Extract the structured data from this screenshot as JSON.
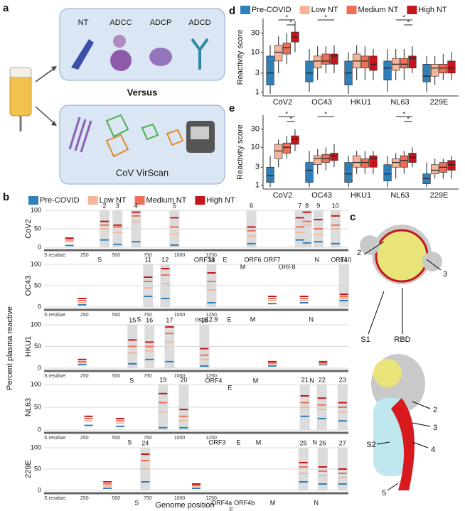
{
  "panel_labels": [
    "a",
    "b",
    "c",
    "d",
    "e"
  ],
  "panel_a": {
    "assays": [
      "NT",
      "ADCC",
      "ADCP",
      "ADCD"
    ],
    "versus": "Versus",
    "method": "CoV VirScan"
  },
  "panel_c": {
    "labels": [
      "2",
      "3",
      "S1",
      "RBD",
      "S2",
      "2",
      "3",
      "4",
      "5"
    ]
  },
  "chart_data": [
    {
      "type": "genome",
      "ylabel": "Percent plasma reactive",
      "xlabel": "Genome position",
      "xlim": [
        100,
        2500
      ],
      "ylim": [
        0,
        100
      ],
      "yticks": [
        0,
        50,
        100
      ],
      "grid": true,
      "legend": "top",
      "residue_label": "S residue:",
      "residue_ticks": [
        250,
        500,
        750,
        1000,
        1250
      ],
      "series": [
        {
          "name": "Pre-COVID",
          "color": "#2f7fb8"
        },
        {
          "name": "Low NT",
          "color": "#f6b59a"
        },
        {
          "name": "Medium NT",
          "color": "#ee6f55"
        },
        {
          "name": "High NT",
          "color": "#c4161c"
        }
      ],
      "tracks": [
        {
          "name": "CoV2",
          "peaks": [
            {
              "label": "2",
              "x": 577
            },
            {
              "label": "3",
              "x": 679
            },
            {
              "label": "4",
              "x": 825
            },
            {
              "label": "5",
              "x": 1128
            },
            {
              "label": "6",
              "x": 1735
            },
            {
              "label": "7",
              "x": 2117
            },
            {
              "label": "8",
              "x": 2173
            },
            {
              "label": "9",
              "x": 2263
            },
            {
              "label": "10",
              "x": 2398
            }
          ],
          "genes": [
            {
              "label": "S",
              "x": 538
            },
            {
              "label": "ORF3a",
              "x": 1364
            },
            {
              "label": "E",
              "x": 1527
            },
            {
              "label": "M",
              "x": 1667
            },
            {
              "label": "ORF6",
              "x": 1746
            },
            {
              "label": "ORF7",
              "x": 1898
            },
            {
              "label": "ORF8",
              "x": 2016
            },
            {
              "label": "N",
              "x": 2252
            },
            {
              "label": "ORF10",
              "x": 2443
            }
          ],
          "x": [
            300,
            577,
            679,
            825,
            1128,
            1735,
            2117,
            2173,
            2263,
            2398
          ],
          "values": [
            [
              5,
              20,
              8,
              15,
              6,
              10,
              20,
              12,
              15,
              10
            ],
            [
              15,
              50,
              40,
              70,
              35,
              30,
              40,
              60,
              35,
              50
            ],
            [
              20,
              60,
              55,
              85,
              55,
              45,
              55,
              70,
              50,
              60
            ],
            [
              25,
              70,
              60,
              95,
              80,
              55,
              80,
              95,
              75,
              85
            ]
          ]
        },
        {
          "name": "OC43",
          "peaks": [
            {
              "label": "11",
              "x": 920
            },
            {
              "label": "12",
              "x": 1055
            },
            {
              "label": "13",
              "x": 1420
            },
            {
              "label": "14",
              "x": 2465
            }
          ],
          "genes": [
            {
              "label": "S",
              "x": 847
            },
            {
              "label": "nsp12.9",
              "x": 1380
            },
            {
              "label": "E",
              "x": 1560
            },
            {
              "label": "M",
              "x": 1746
            },
            {
              "label": "N",
              "x": 2207
            }
          ],
          "x": [
            400,
            920,
            1055,
            1420,
            1900,
            2150,
            2465
          ],
          "values": [
            [
              5,
              25,
              20,
              10,
              8,
              10,
              15
            ],
            [
              10,
              45,
              55,
              40,
              15,
              15,
              20
            ],
            [
              15,
              60,
              75,
              60,
              20,
              20,
              25
            ],
            [
              20,
              70,
              90,
              80,
              25,
              25,
              30
            ]
          ]
        },
        {
          "name": "HKU1",
          "peaks": [
            {
              "label": "15",
              "x": 797
            },
            {
              "label": "16",
              "x": 931
            },
            {
              "label": "17",
              "x": 1089
            },
            {
              "label": "18",
              "x": 1364
            }
          ],
          "genes": [
            {
              "label": "S",
              "x": 791
            },
            {
              "label": "ORF4",
              "x": 1437
            },
            {
              "label": "E",
              "x": 1566
            },
            {
              "label": "M",
              "x": 1768
            },
            {
              "label": "N",
              "x": 2212
            }
          ],
          "x": [
            400,
            797,
            931,
            1089,
            1364,
            1900,
            2300
          ],
          "values": [
            [
              8,
              10,
              20,
              15,
              5,
              5,
              8
            ],
            [
              12,
              35,
              40,
              60,
              20,
              10,
              10
            ],
            [
              15,
              50,
              50,
              80,
              30,
              12,
              12
            ],
            [
              20,
              65,
              60,
              95,
              45,
              15,
              15
            ]
          ]
        },
        {
          "name": "NL63",
          "peaks": [
            {
              "label": "19",
              "x": 1038
            },
            {
              "label": "20",
              "x": 1201
            },
            {
              "label": "21",
              "x": 2156
            },
            {
              "label": "22",
              "x": 2291
            },
            {
              "label": "23",
              "x": 2454
            }
          ],
          "genes": [
            {
              "label": "S",
              "x": 774
            },
            {
              "label": "ORF3",
              "x": 1465
            },
            {
              "label": "E",
              "x": 1634
            },
            {
              "label": "M",
              "x": 1791
            },
            {
              "label": "N",
              "x": 2235
            }
          ],
          "x": [
            450,
            700,
            1038,
            1201,
            2156,
            2291,
            2454
          ],
          "values": [
            [
              10,
              8,
              5,
              5,
              30,
              25,
              20
            ],
            [
              20,
              15,
              40,
              20,
              50,
              45,
              40
            ],
            [
              25,
              20,
              60,
              30,
              60,
              55,
              50
            ],
            [
              30,
              25,
              80,
              45,
              75,
              70,
              60
            ]
          ]
        },
        {
          "name": "229E",
          "peaks": [
            {
              "label": "24",
              "x": 898
            },
            {
              "label": "25",
              "x": 2145
            },
            {
              "label": "26",
              "x": 2297
            },
            {
              "label": "27",
              "x": 2454
            }
          ],
          "genes": [
            {
              "label": "S",
              "x": 830
            },
            {
              "label": "ORF4a",
              "x": 1500
            },
            {
              "label": "ORF4b",
              "x": 1679
            },
            {
              "label": "E",
              "x": 1578
            },
            {
              "label": "M",
              "x": 1903
            },
            {
              "label": "N",
              "x": 2246
            }
          ],
          "x": [
            600,
            898,
            1300,
            2145,
            2297,
            2454
          ],
          "values": [
            [
              5,
              20,
              5,
              20,
              15,
              15
            ],
            [
              10,
              50,
              10,
              40,
              35,
              30
            ],
            [
              15,
              70,
              12,
              55,
              45,
              40
            ],
            [
              20,
              85,
              15,
              65,
              55,
              50
            ]
          ]
        }
      ]
    },
    {
      "type": "box",
      "log": true,
      "ylabel": "Reactivity score",
      "legend": "top",
      "categories": [
        "CoV2",
        "OC43",
        "HKU1",
        "NL63",
        "229E"
      ],
      "ylim": [
        0.8,
        70
      ],
      "yticks": [
        1,
        3,
        10,
        30
      ],
      "series": [
        {
          "name": "Pre-COVID",
          "color": "#2f7fb8",
          "values": [
            [
              0.9,
              1.5,
              3,
              8,
              15
            ],
            [
              1,
              1.8,
              3,
              6,
              12
            ],
            [
              0.9,
              1.5,
              3,
              6,
              10
            ],
            [
              1,
              2,
              4,
              6,
              12
            ],
            [
              1,
              1.8,
              2.5,
              5,
              8
            ]
          ]
        },
        {
          "name": "Low NT",
          "color": "#f6b59a",
          "values": [
            [
              3,
              6,
              10,
              15,
              25
            ],
            [
              2,
              4,
              6,
              8,
              14
            ],
            [
              2,
              4,
              6,
              9,
              15
            ],
            [
              2,
              3.5,
              5,
              7,
              12
            ],
            [
              1.5,
              2.5,
              4,
              5,
              8
            ]
          ]
        },
        {
          "name": "Medium NT",
          "color": "#ee6f55",
          "values": [
            [
              5,
              9,
              13,
              17,
              30
            ],
            [
              3,
              5,
              6,
              9,
              14
            ],
            [
              2,
              4,
              6,
              8,
              14
            ],
            [
              2,
              4,
              5,
              7,
              12
            ],
            [
              2,
              3,
              4,
              5,
              9
            ]
          ]
        },
        {
          "name": "High NT",
          "color": "#c4161c",
          "values": [
            [
              10,
              18,
              24,
              32,
              60
            ],
            [
              3,
              5,
              8,
              9,
              15
            ],
            [
              2,
              3.5,
              5,
              8,
              12
            ],
            [
              3,
              4,
              7,
              8,
              14
            ],
            [
              2,
              3,
              4,
              6,
              10
            ]
          ]
        }
      ],
      "significance": [
        {
          "category": 0,
          "from": 1,
          "to": 3,
          "text": "*"
        },
        {
          "category": 0,
          "from": 2,
          "to": 3,
          "text": "*"
        },
        {
          "category": 1,
          "from": 1,
          "to": 3,
          "text": "*"
        },
        {
          "category": 3,
          "from": 1,
          "to": 3,
          "text": "*"
        },
        {
          "category": 3,
          "from": 2,
          "to": 3,
          "text": "*"
        }
      ]
    },
    {
      "type": "box",
      "log": true,
      "ylabel": "Reactivity score",
      "categories": [
        "CoV2",
        "OC43",
        "HKU1",
        "NL63",
        "229E"
      ],
      "ylim": [
        0.8,
        70
      ],
      "yticks": [
        1,
        3,
        10,
        30
      ],
      "series": [
        {
          "color": "#2f7fb8",
          "values": [
            [
              0.9,
              1.2,
              1.8,
              3,
              6
            ],
            [
              0.9,
              1.2,
              2.5,
              4,
              8
            ],
            [
              0.9,
              1.2,
              2,
              4,
              6
            ],
            [
              0.9,
              1.3,
              2,
              3.5,
              6
            ],
            [
              0.9,
              1.1,
              1.5,
              2,
              4
            ]
          ]
        },
        {
          "color": "#f6b59a",
          "values": [
            [
              3,
              5,
              8,
              12,
              16
            ],
            [
              2,
              3.5,
              5,
              6,
              9
            ],
            [
              2,
              3,
              4,
              6,
              8
            ],
            [
              1.5,
              3,
              4,
              5,
              7
            ],
            [
              1.5,
              2,
              2.5,
              3.5,
              5
            ]
          ]
        },
        {
          "color": "#ee6f55",
          "values": [
            [
              5,
              7,
              10,
              13,
              20
            ],
            [
              2.5,
              4,
              5,
              6.5,
              10
            ],
            [
              2,
              3,
              4,
              5,
              8
            ],
            [
              2,
              3,
              4.5,
              6,
              8
            ],
            [
              1.5,
              2.2,
              3,
              4,
              5
            ]
          ]
        },
        {
          "color": "#c4161c",
          "values": [
            [
              8,
              12,
              16,
              20,
              30
            ],
            [
              3,
              4.5,
              6,
              7,
              12
            ],
            [
              2,
              3,
              5,
              6,
              8
            ],
            [
              3,
              4,
              5.5,
              7,
              10
            ],
            [
              1.5,
              2.5,
              3.5,
              4.5,
              6
            ]
          ]
        }
      ],
      "significance": [
        {
          "category": 0,
          "from": 1,
          "to": 3,
          "text": "*"
        },
        {
          "category": 0,
          "from": 2,
          "to": 3,
          "text": "*"
        },
        {
          "category": 1,
          "from": 1,
          "to": 3,
          "text": "*"
        },
        {
          "category": 3,
          "from": 1,
          "to": 3,
          "text": "*"
        },
        {
          "category": 3,
          "from": 2,
          "to": 3,
          "text": "*"
        }
      ]
    }
  ]
}
